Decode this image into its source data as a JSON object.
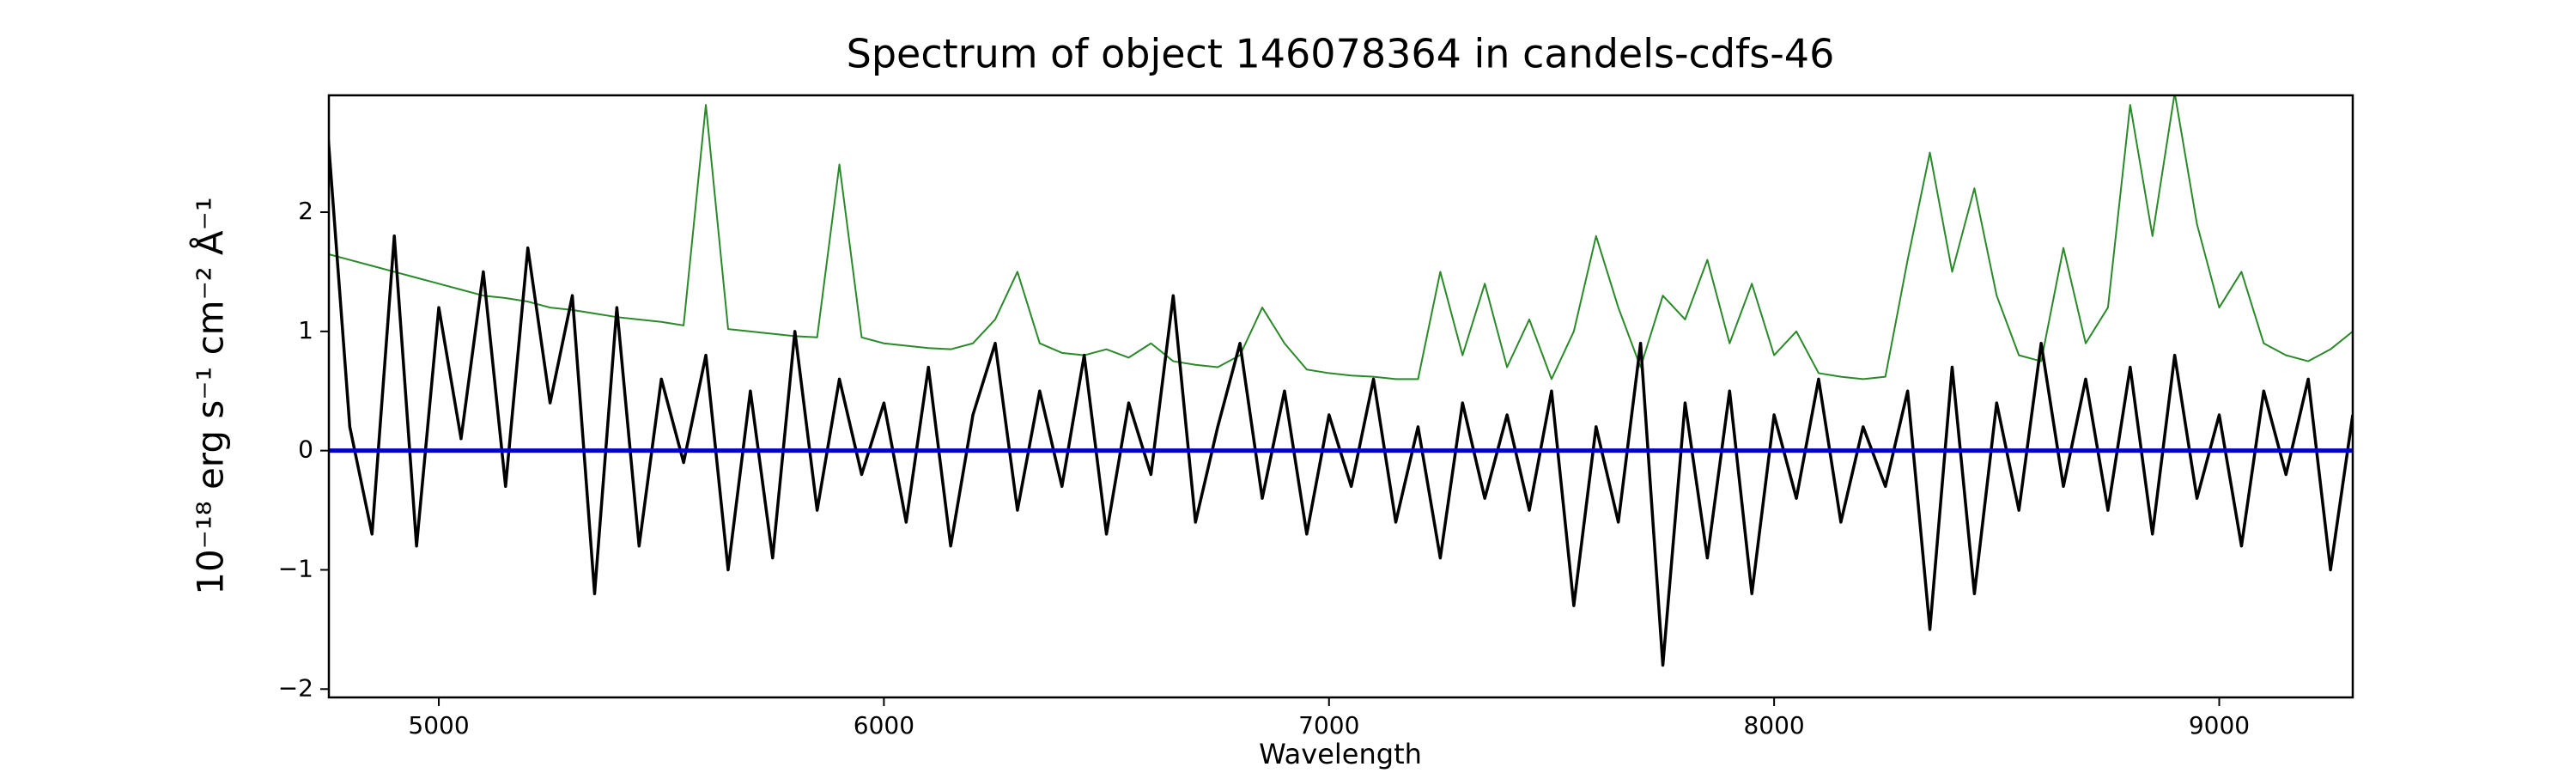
{
  "chart_data": {
    "type": "line",
    "title": "Spectrum of object 146078364 in candels-cdfs-46",
    "x_label": "Wavelength",
    "y_label": "10⁻¹⁸ erg s⁻¹ cm⁻² Å⁻¹",
    "xlim": [
      4753,
      9300
    ],
    "ylim": [
      -2.07,
      2.98
    ],
    "xticks": [
      5000,
      6000,
      7000,
      8000,
      9000
    ],
    "yticks": [
      {
        "value": -2,
        "label": "−2"
      },
      {
        "value": -1,
        "label": "−1"
      },
      0,
      1,
      2
    ],
    "x": [
      4750,
      4800,
      4850,
      4900,
      4950,
      5000,
      5050,
      5100,
      5150,
      5200,
      5250,
      5300,
      5350,
      5400,
      5450,
      5500,
      5550,
      5600,
      5650,
      5700,
      5750,
      5800,
      5850,
      5900,
      5950,
      6000,
      6050,
      6100,
      6150,
      6200,
      6250,
      6300,
      6350,
      6400,
      6450,
      6500,
      6550,
      6600,
      6650,
      6700,
      6750,
      6800,
      6850,
      6900,
      6950,
      7000,
      7050,
      7100,
      7150,
      7200,
      7250,
      7300,
      7350,
      7400,
      7450,
      7500,
      7550,
      7600,
      7650,
      7700,
      7750,
      7800,
      7850,
      7900,
      7950,
      8000,
      8050,
      8100,
      8150,
      8200,
      8250,
      8300,
      8350,
      8400,
      8450,
      8500,
      8550,
      8600,
      8650,
      8700,
      8750,
      8800,
      8850,
      8900,
      8950,
      9000,
      9050,
      9100,
      9150,
      9200,
      9250,
      9300
    ],
    "series": [
      {
        "color": "#2a8a2a",
        "width": 2,
        "values": [
          1.65,
          1.6,
          1.55,
          1.5,
          1.45,
          1.4,
          1.35,
          1.3,
          1.28,
          1.25,
          1.2,
          1.18,
          1.15,
          1.12,
          1.1,
          1.08,
          1.05,
          2.9,
          1.02,
          1.0,
          0.98,
          0.96,
          0.95,
          2.4,
          0.95,
          0.9,
          0.88,
          0.86,
          0.85,
          0.9,
          1.1,
          1.5,
          0.9,
          0.82,
          0.8,
          0.85,
          0.78,
          0.9,
          0.75,
          0.72,
          0.7,
          0.8,
          1.2,
          0.9,
          0.68,
          0.65,
          0.63,
          0.62,
          0.6,
          0.6,
          1.5,
          0.8,
          1.4,
          0.7,
          1.1,
          0.6,
          1.0,
          1.8,
          1.2,
          0.7,
          1.3,
          1.1,
          1.6,
          0.9,
          1.4,
          0.8,
          1.0,
          0.65,
          0.62,
          0.6,
          0.62,
          1.6,
          2.5,
          1.5,
          2.2,
          1.3,
          0.8,
          0.75,
          1.7,
          0.9,
          1.2,
          2.9,
          1.8,
          3.0,
          1.9,
          1.2,
          1.5,
          0.9,
          0.8,
          0.75,
          0.85,
          1.0
        ]
      },
      {
        "color": "#000000",
        "width": 3.5,
        "values": [
          2.7,
          0.2,
          -0.7,
          1.8,
          -0.8,
          1.2,
          0.1,
          1.5,
          -0.3,
          1.7,
          0.4,
          1.3,
          -1.2,
          1.2,
          -0.8,
          0.6,
          -0.1,
          0.8,
          -1.0,
          0.5,
          -0.9,
          1.0,
          -0.5,
          0.6,
          -0.2,
          0.4,
          -0.6,
          0.7,
          -0.8,
          0.3,
          0.9,
          -0.5,
          0.5,
          -0.3,
          0.8,
          -0.7,
          0.4,
          -0.2,
          1.3,
          -0.6,
          0.2,
          0.9,
          -0.4,
          0.5,
          -0.7,
          0.3,
          -0.3,
          0.6,
          -0.6,
          0.2,
          -0.9,
          0.4,
          -0.4,
          0.3,
          -0.5,
          0.5,
          -1.3,
          0.2,
          -0.6,
          0.9,
          -1.8,
          0.4,
          -0.9,
          0.5,
          -1.2,
          0.3,
          -0.4,
          0.6,
          -0.6,
          0.2,
          -0.3,
          0.5,
          -1.5,
          0.7,
          -1.2,
          0.4,
          -0.5,
          0.9,
          -0.3,
          0.6,
          -0.5,
          0.7,
          -0.7,
          0.8,
          -0.4,
          0.3,
          -0.8,
          0.5,
          -0.2,
          0.6,
          -1.0,
          0.3
        ]
      }
    ],
    "hline": {
      "value": 0,
      "color": "#0000cc"
    }
  }
}
